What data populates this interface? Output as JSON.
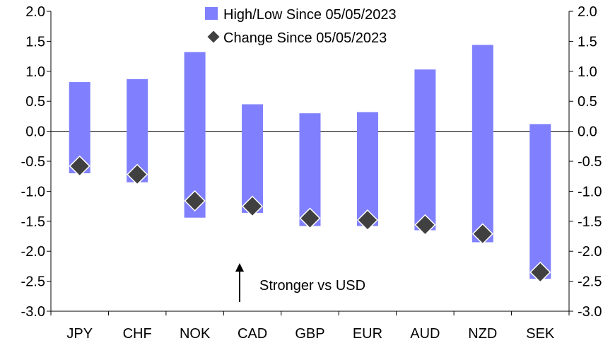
{
  "chart_data": {
    "type": "bar",
    "categories": [
      "JPY",
      "CHF",
      "NOK",
      "CAD",
      "GBP",
      "EUR",
      "AUD",
      "NZD",
      "SEK"
    ],
    "series": [
      {
        "name": "High/Low Since 05/05/2023",
        "kind": "range-bar",
        "color": "#8080ff",
        "high": [
          0.82,
          0.87,
          1.32,
          0.45,
          0.3,
          0.32,
          1.03,
          1.44,
          0.12
        ],
        "low": [
          -0.7,
          -0.85,
          -1.44,
          -1.36,
          -1.58,
          -1.58,
          -1.65,
          -1.85,
          -2.46
        ]
      },
      {
        "name": "Change Since 05/05/2023",
        "kind": "marker",
        "color": "#404040",
        "values": [
          -0.58,
          -0.72,
          -1.16,
          -1.25,
          -1.45,
          -1.48,
          -1.56,
          -1.71,
          -2.35
        ]
      }
    ],
    "ylim": [
      -3.0,
      2.0
    ],
    "yticks": [
      "2.0",
      "1.5",
      "1.0",
      "0.5",
      "0.0",
      "-0.5",
      "-1.0",
      "-1.5",
      "-2.0",
      "-2.5",
      "-3.0"
    ],
    "ytick_values": [
      2.0,
      1.5,
      1.0,
      0.5,
      0.0,
      -0.5,
      -1.0,
      -1.5,
      -2.0,
      -2.5,
      -3.0
    ],
    "legend_position": "top-center",
    "annotation": "Stronger vs USD",
    "grid": false
  }
}
